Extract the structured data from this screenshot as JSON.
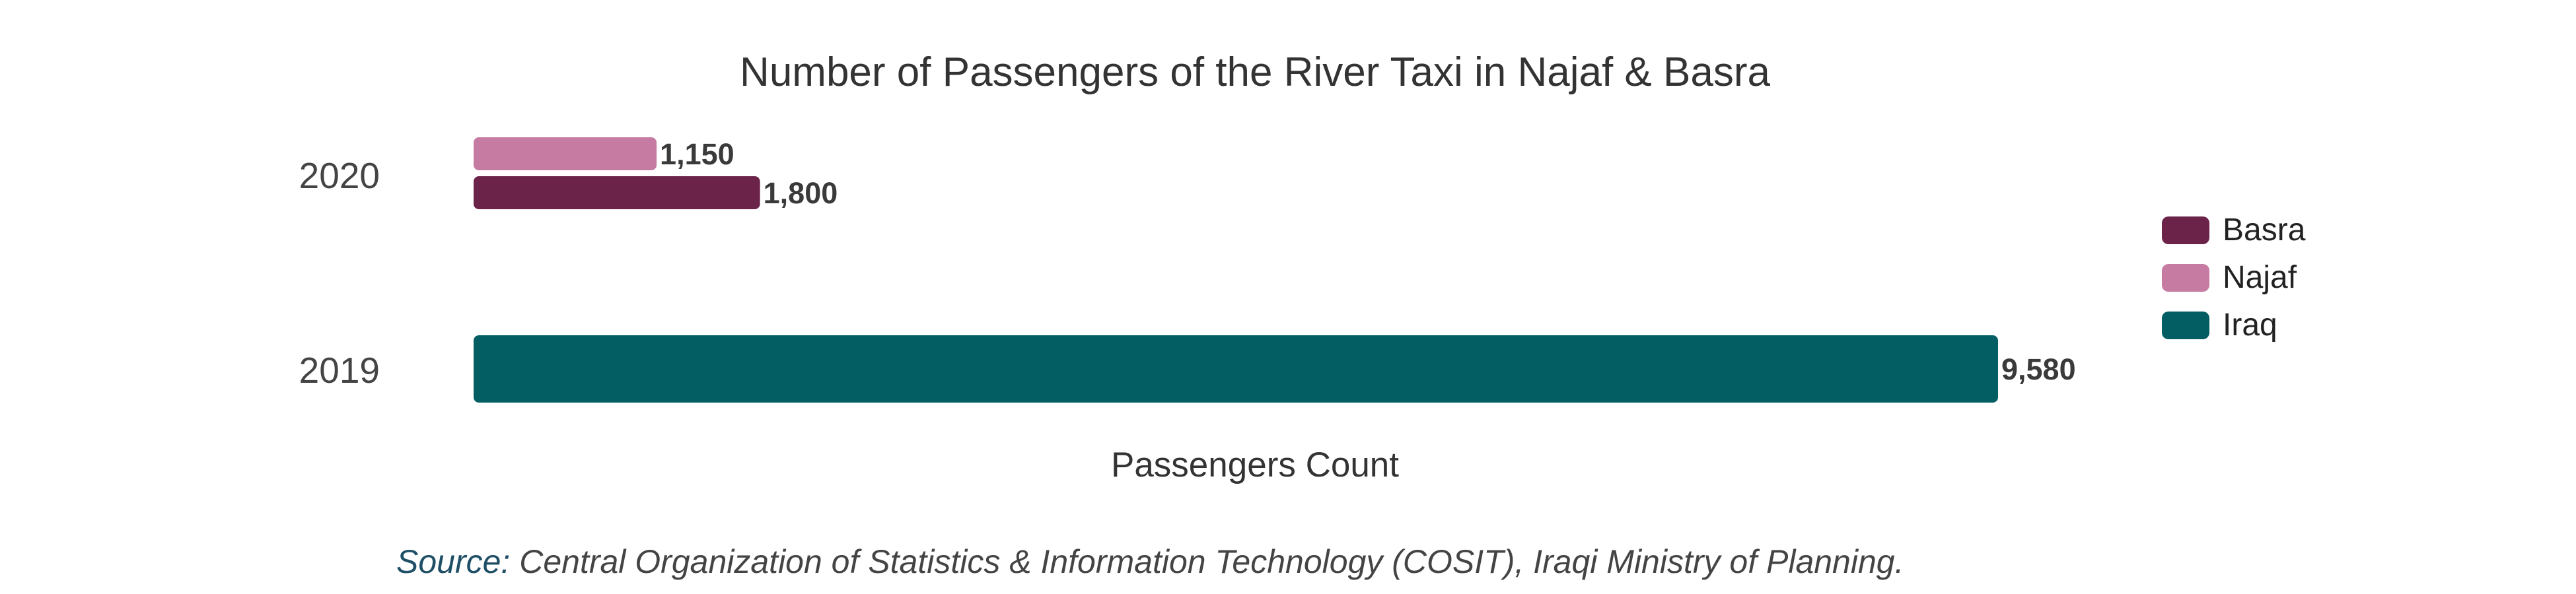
{
  "chart_data": {
    "type": "bar",
    "orientation": "horizontal",
    "title": "Number of Passengers of the River Taxi in Najaf & Basra",
    "xlabel": "Passengers Count",
    "ylabel": "",
    "categories": [
      "2020",
      "2019"
    ],
    "series": [
      {
        "name": "Najaf",
        "color": "#c67ba2",
        "values": [
          1150,
          null
        ],
        "labels": [
          "1,150",
          ""
        ]
      },
      {
        "name": "Basra",
        "color": "#6b2349",
        "values": [
          1800,
          null
        ],
        "labels": [
          "1,800",
          ""
        ]
      },
      {
        "name": "Iraq",
        "color": "#035e63",
        "values": [
          null,
          9580
        ],
        "labels": [
          "",
          "9,580"
        ]
      }
    ],
    "xlim": [
      0,
      9580
    ],
    "grid": false,
    "legend": {
      "placement": "right",
      "entries": [
        {
          "name": "Basra",
          "color": "#6b2349"
        },
        {
          "name": "Najaf",
          "color": "#c67ba2"
        },
        {
          "name": "Iraq",
          "color": "#035e63"
        }
      ]
    }
  },
  "source": {
    "label": "Source:",
    "text": " Central Organization of Statistics & Information Technology (COSIT), Iraqi Ministry of Planning."
  }
}
